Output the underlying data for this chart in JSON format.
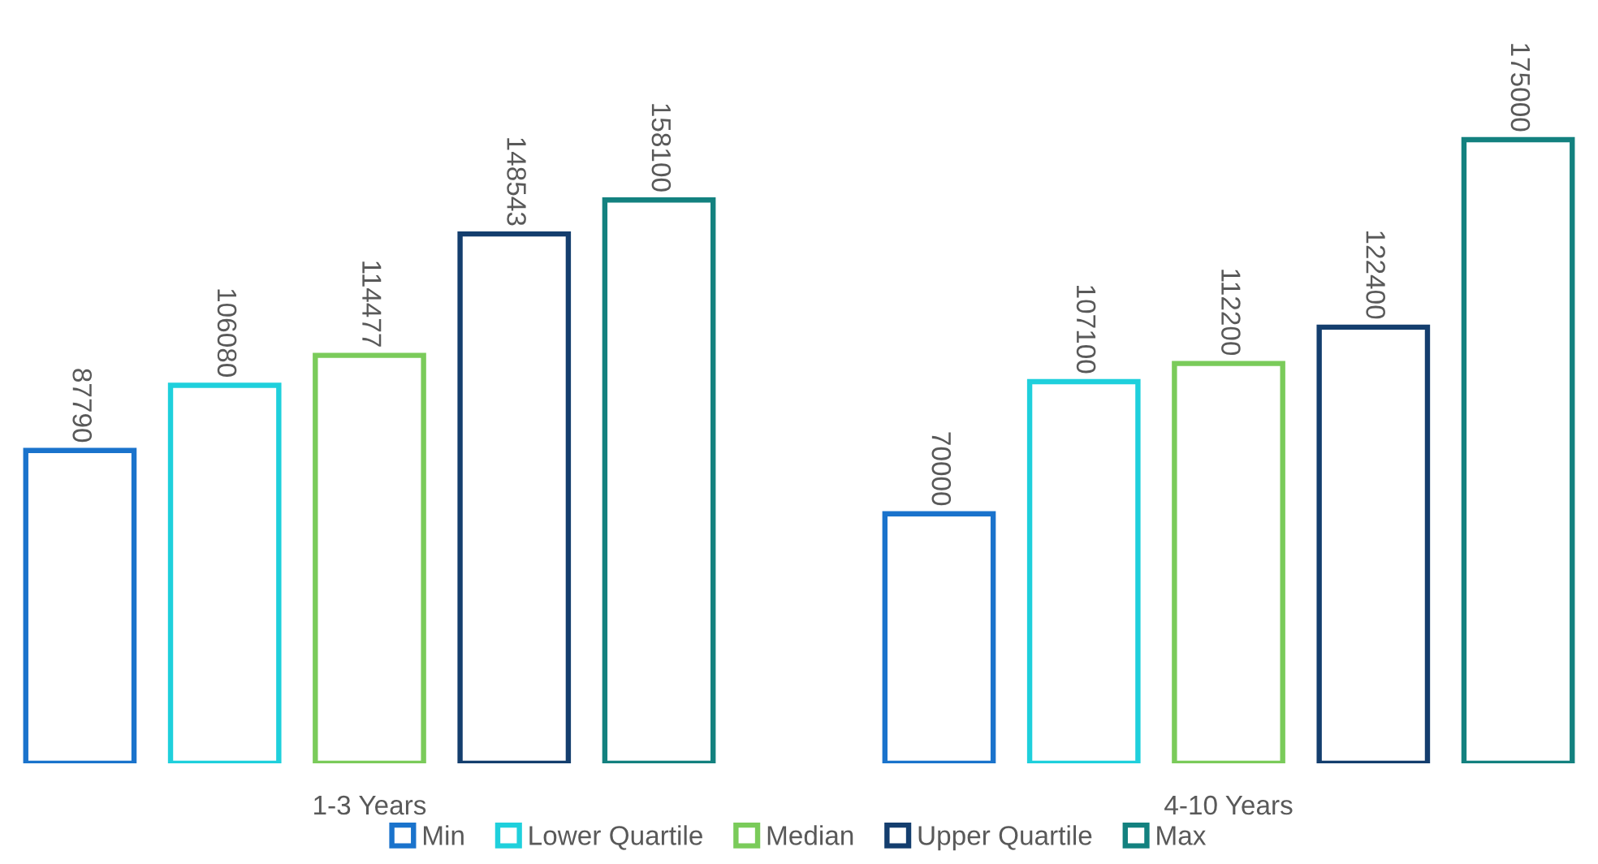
{
  "chart_data": {
    "type": "bar",
    "categories": [
      "1-3 Years",
      "4-10 Years"
    ],
    "series": [
      {
        "name": "Min",
        "color": "#1a73cc",
        "values": [
          87790,
          70000
        ]
      },
      {
        "name": "Lower Quartile",
        "color": "#1fd0dc",
        "values": [
          106080,
          107100
        ]
      },
      {
        "name": "Median",
        "color": "#7acb5a",
        "values": [
          114477,
          112200
        ]
      },
      {
        "name": "Upper Quartile",
        "color": "#143e6e",
        "values": [
          148543,
          122400
        ]
      },
      {
        "name": "Max",
        "color": "#13817f",
        "values": [
          158100,
          175000
        ]
      }
    ],
    "data_labels": true,
    "legend": "bottom",
    "grid": false
  }
}
